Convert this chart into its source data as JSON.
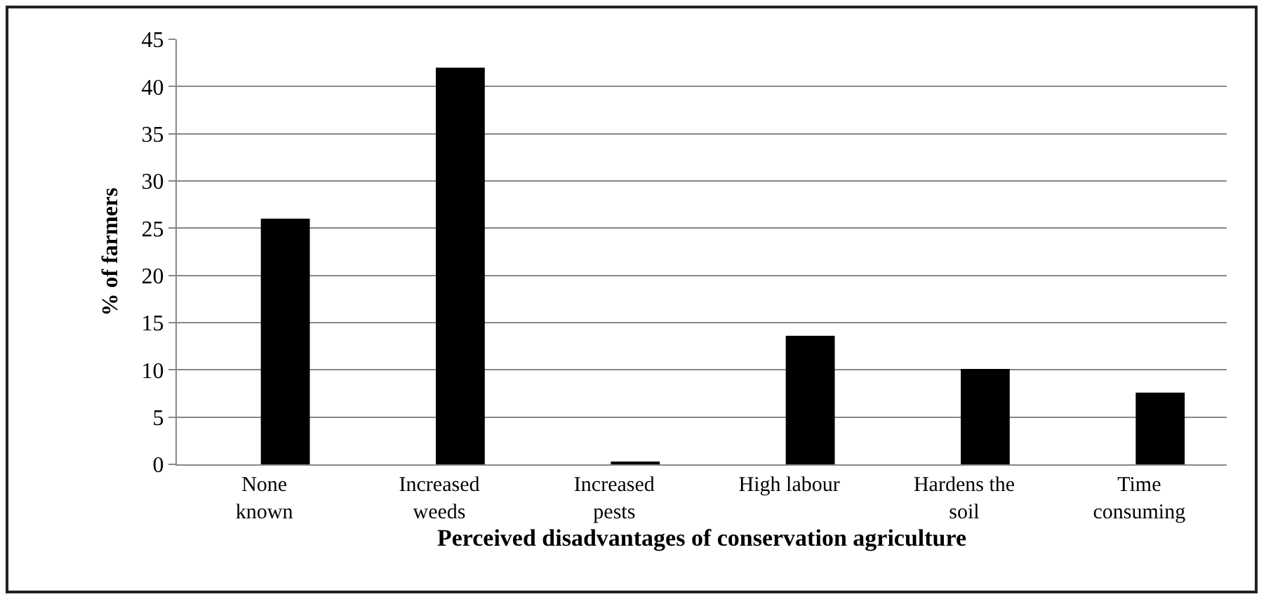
{
  "chart_data": {
    "type": "bar",
    "xlabel": "Perceived disadvantages of conservation agriculture",
    "ylabel": "% of farmers",
    "categories": [
      "None\nknown",
      "Increased\nweeds",
      "Increased\npests",
      "High labour",
      "Hardens the\nsoil",
      "Time\nconsuming"
    ],
    "values": [
      26,
      42,
      0.3,
      13.6,
      10.1,
      7.6
    ],
    "color": "#000000",
    "ylim": [
      0,
      45
    ],
    "yticks": [
      0,
      5,
      10,
      15,
      20,
      25,
      30,
      35,
      40,
      45
    ],
    "grid": "y"
  }
}
